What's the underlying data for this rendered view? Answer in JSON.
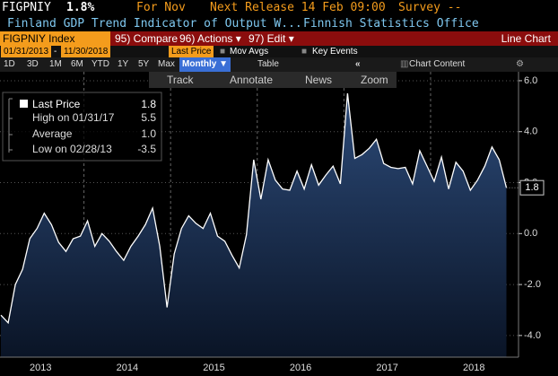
{
  "header": {
    "ticker": "FIGPNIY",
    "last": "1.8%",
    "period": "For Nov",
    "next_release": "Next Release 14 Feb 09:00",
    "survey": "Survey --",
    "description": "Finland GDP Trend Indicator of Output W...",
    "source": "Finnish Statistics Office"
  },
  "menu": {
    "security": "FIGPNIY Index",
    "compare": "95) Compare",
    "actions": "96) Actions ▾",
    "edit": "97) Edit ▾",
    "chart_type": "Line Chart"
  },
  "range": {
    "start": "01/31/2013",
    "end": "11/30/2018",
    "field": "Last Price",
    "mov_avgs": "Mov Avgs",
    "key_events": "Key Events"
  },
  "periods": [
    "1D",
    "3D",
    "1M",
    "6M",
    "YTD",
    "1Y",
    "5Y",
    "Max",
    "Monthly ▼",
    "Table",
    "Chart Content"
  ],
  "toolbar": [
    "Track",
    "Annotate",
    "News",
    "Zoom"
  ],
  "legend": [
    {
      "value": "1.8"
    },
    {
      "label": "High on 01/31/17",
      "value": "5.5"
    },
    {
      "label": "Average",
      "value": "1.0"
    },
    {
      "label": "Low on 02/28/13",
      "value": "-3.5"
    }
  ],
  "chart_data": {
    "type": "line",
    "categories": [
      null,
      null,
      null,
      null,
      null,
      null,
      "2013",
      null,
      null,
      null,
      null,
      null,
      null,
      null,
      null,
      null,
      null,
      null,
      "2014",
      null,
      null,
      null,
      null,
      null,
      null,
      null,
      null,
      null,
      null,
      null,
      "2015",
      null,
      null,
      null,
      null,
      null,
      null,
      null,
      null,
      null,
      null,
      null,
      "2016",
      null,
      null,
      null,
      null,
      null,
      null,
      null,
      null,
      null,
      null,
      null,
      "2017",
      null,
      null,
      null,
      null,
      null,
      null,
      null,
      null,
      null,
      null,
      null,
      "2018",
      null,
      null,
      null,
      null
    ],
    "series": [
      {
        "name": "Last Price",
        "color": "#ffffff",
        "values": [
          -3.2,
          -3.5,
          -2.0,
          -1.4,
          -0.2,
          0.2,
          0.8,
          0.35,
          -0.35,
          -0.7,
          -0.2,
          -0.1,
          0.5,
          -0.5,
          0.0,
          -0.3,
          -0.7,
          -1.05,
          -0.5,
          -0.1,
          0.35,
          1.0,
          -0.5,
          -2.9,
          -0.8,
          0.2,
          0.7,
          0.4,
          0.2,
          0.8,
          -0.1,
          -0.3,
          -0.85,
          -1.35,
          -0.05,
          2.9,
          1.35,
          2.9,
          2.1,
          1.75,
          1.7,
          2.45,
          1.75,
          2.7,
          1.9,
          2.3,
          2.65,
          1.95,
          5.5,
          2.95,
          3.1,
          3.35,
          3.7,
          2.75,
          2.6,
          2.55,
          2.6,
          1.95,
          3.25,
          2.65,
          2.05,
          3.0,
          1.75,
          2.8,
          2.45,
          1.7,
          2.1,
          2.65,
          3.4,
          2.9,
          1.8
        ]
      }
    ],
    "ylim": [
      -4.85,
      6.35
    ],
    "yticks": [
      {
        "value": 6,
        "label": "6.0"
      },
      {
        "value": 4,
        "label": "4.0"
      },
      {
        "value": 2,
        "label": "2.0"
      },
      {
        "value": 0,
        "label": "0.0"
      },
      {
        "value": -2,
        "label": "-2.0"
      },
      {
        "value": -4,
        "label": "-4.0"
      }
    ],
    "grid": true
  }
}
